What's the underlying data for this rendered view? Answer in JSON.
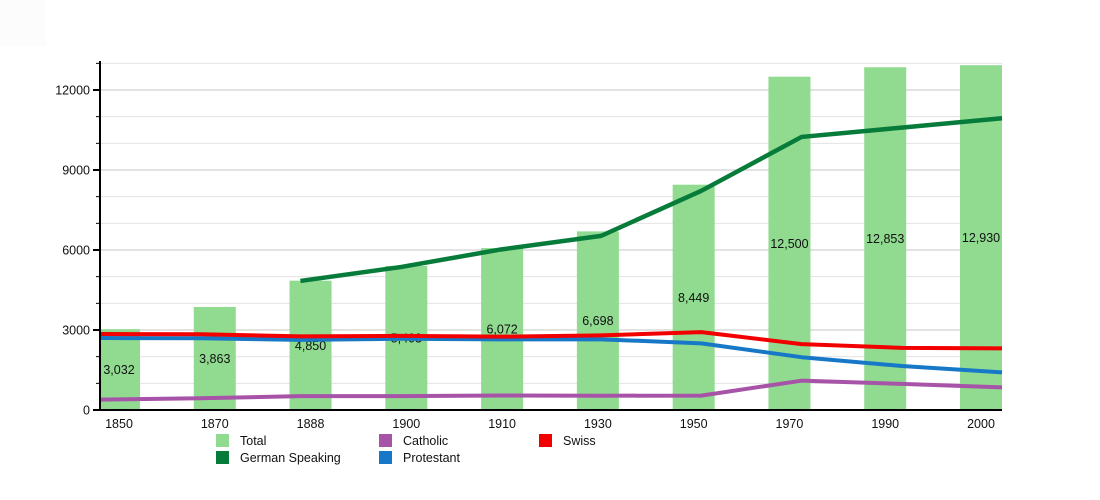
{
  "chart_data": {
    "type": "bar+line",
    "title": "",
    "categories": [
      "1850",
      "1870",
      "1888",
      "1900",
      "1910",
      "1930",
      "1950",
      "1970",
      "1990",
      "2000"
    ],
    "bars": {
      "name": "Total",
      "values": [
        3032,
        3863,
        4850,
        5403,
        6072,
        6698,
        8449,
        12500,
        12853,
        12930
      ],
      "labels": [
        "3,032",
        "3,863",
        "4,850",
        "5,403",
        "6,072",
        "6,698",
        "8,449",
        "12,500",
        "12,853",
        "12,930"
      ],
      "color": "#90DB90"
    },
    "line_series": [
      {
        "name": "German Speaking",
        "color": "#067B3A",
        "stroke_width": 4.5,
        "values": [
          null,
          null,
          4840,
          5360,
          6020,
          6530,
          8220,
          10240,
          10590,
          10940
        ]
      },
      {
        "name": "Catholic",
        "color": "#A753A7",
        "stroke_width": 4,
        "values": [
          390,
          440,
          520,
          520,
          545,
          535,
          540,
          1100,
          980,
          850
        ]
      },
      {
        "name": "Protestant",
        "color": "#1778C8",
        "stroke_width": 4,
        "values": [
          2700,
          2690,
          2630,
          2670,
          2650,
          2650,
          2500,
          1980,
          1650,
          1410
        ]
      },
      {
        "name": "Swiss",
        "color": "#F20000",
        "stroke_width": 4,
        "values": [
          2850,
          2840,
          2760,
          2780,
          2750,
          2800,
          2920,
          2470,
          2330,
          2310
        ]
      }
    ],
    "y_axis": {
      "min": 0,
      "max": 13000,
      "major_tick_step": 3000,
      "minor_tick_step": 1000,
      "tick_labels": [
        "0",
        "3000",
        "6000",
        "9000",
        "12000"
      ]
    },
    "grid": true,
    "legend_position": "bottom",
    "legend": [
      {
        "label": "Total",
        "swatch": "#90DB90"
      },
      {
        "label": "German Speaking",
        "swatch": "#067B3A"
      },
      {
        "label": "Catholic",
        "swatch": "#A753A7"
      },
      {
        "label": "Protestant",
        "swatch": "#1778C8"
      },
      {
        "label": "Swiss",
        "swatch": "#F20000"
      }
    ],
    "colors": {
      "axis": "#000000",
      "major_grid": "#c4c4c4",
      "minor_grid": "#e3e3e3",
      "label_text": "#111111"
    }
  }
}
